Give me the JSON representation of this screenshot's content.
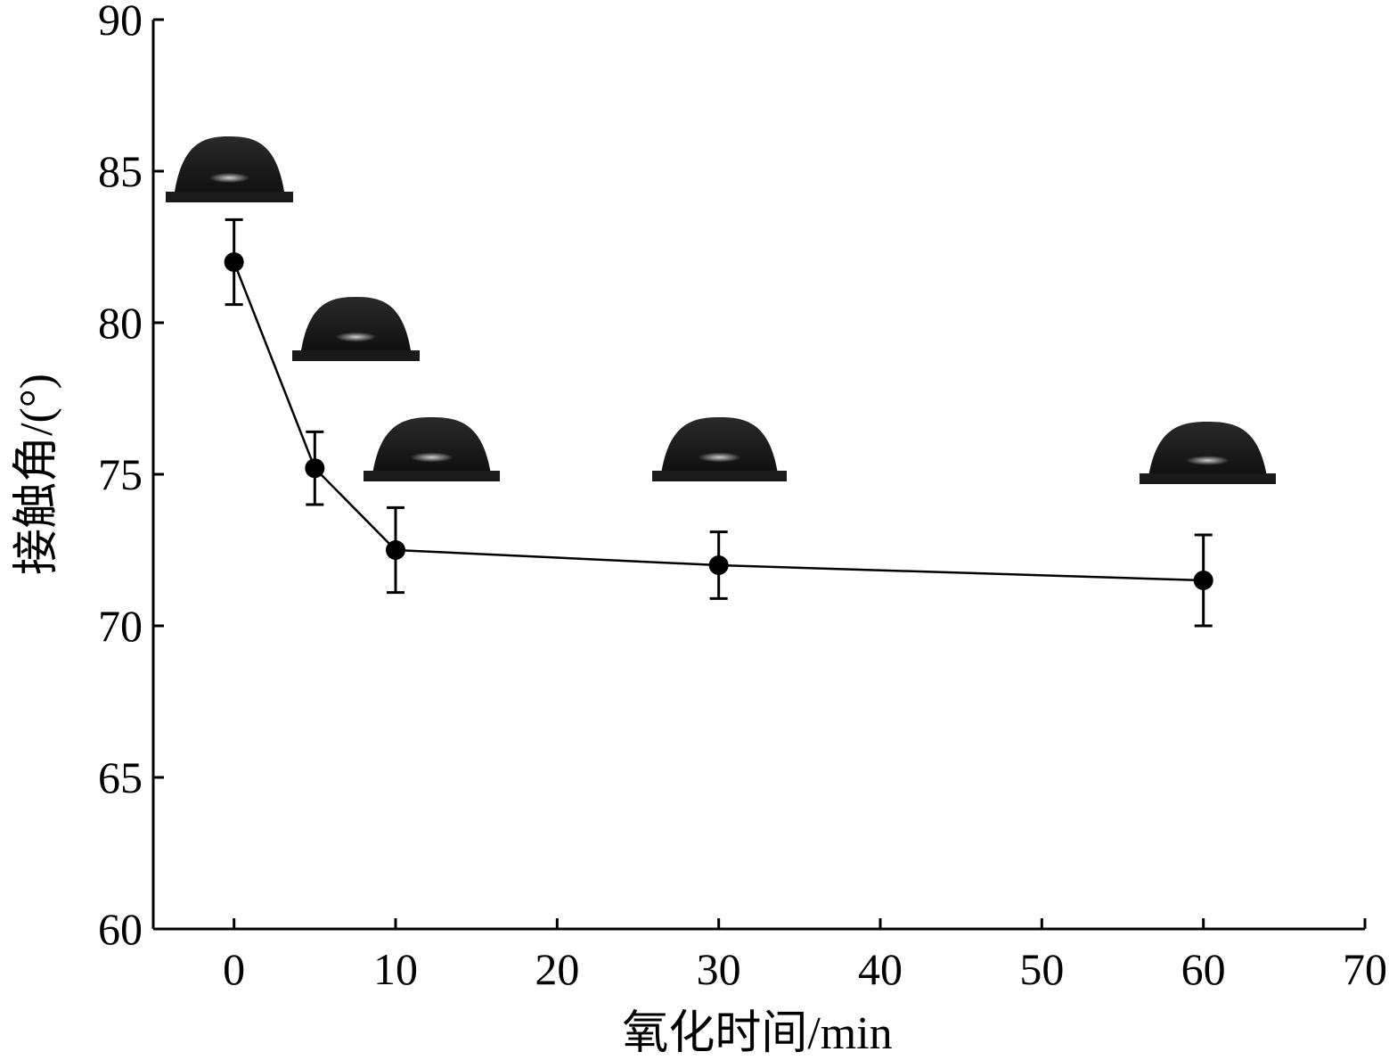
{
  "chart_data": {
    "type": "line",
    "xlabel": "氧化时间/min",
    "ylabel": "接触角/(°)",
    "xlim": [
      -5,
      70
    ],
    "ylim": [
      60,
      90
    ],
    "x_ticks": [
      0,
      10,
      20,
      30,
      40,
      50,
      60,
      70
    ],
    "y_ticks": [
      60,
      65,
      70,
      75,
      80,
      85,
      90
    ],
    "grid": false,
    "series": [
      {
        "x": [
          0,
          5,
          10,
          30,
          60
        ],
        "y": [
          82.0,
          75.2,
          72.5,
          72.0,
          71.5
        ],
        "error": [
          1.4,
          1.2,
          1.4,
          1.1,
          1.5
        ]
      }
    ],
    "inset_images": [
      {
        "depicts": "water droplet",
        "x": 0
      },
      {
        "depicts": "water droplet",
        "x": 5
      },
      {
        "depicts": "water droplet",
        "x": 10
      },
      {
        "depicts": "water droplet",
        "x": 30
      },
      {
        "depicts": "water droplet",
        "x": 60
      }
    ]
  }
}
